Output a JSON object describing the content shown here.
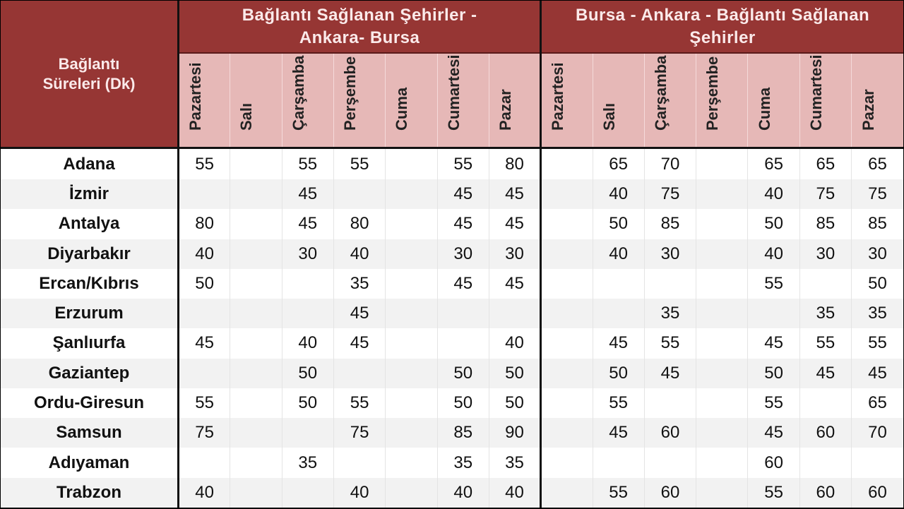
{
  "header": {
    "corner_line1": "Bağlantı",
    "corner_line2": "Süreleri (Dk)",
    "group1": {
      "bold": "Bağlantı Sağlanan Şehirler -",
      "normal": "Ankara- Bursa"
    },
    "group2": {
      "normal": "Bursa - Ankara - ",
      "bold": "Bağlantı Sağlanan Şehirler"
    },
    "days": [
      "Pazartesi",
      "Salı",
      "Çarşamba",
      "Perşembe",
      "Cuma",
      "Cumartesi",
      "Pazar"
    ]
  },
  "colors": {
    "header_dark": "#963634",
    "header_light": "#e6b8b7",
    "stripe": "#f2f2f2"
  },
  "rows": [
    {
      "city": "Adana",
      "values": [
        "55",
        "",
        "55",
        "55",
        "",
        "55",
        "80",
        "",
        "65",
        "70",
        "",
        "65",
        "65",
        "65"
      ]
    },
    {
      "city": "İzmir",
      "values": [
        "",
        "",
        "45",
        "",
        "",
        "45",
        "45",
        "",
        "40",
        "75",
        "",
        "40",
        "75",
        "75"
      ]
    },
    {
      "city": "Antalya",
      "values": [
        "80",
        "",
        "45",
        "80",
        "",
        "45",
        "45",
        "",
        "50",
        "85",
        "",
        "50",
        "85",
        "85"
      ]
    },
    {
      "city": "Diyarbakır",
      "values": [
        "40",
        "",
        "30",
        "40",
        "",
        "30",
        "30",
        "",
        "40",
        "30",
        "",
        "40",
        "30",
        "30"
      ]
    },
    {
      "city": "Ercan/Kıbrıs",
      "values": [
        "50",
        "",
        "",
        "35",
        "",
        "45",
        "45",
        "",
        "",
        "",
        "",
        "55",
        "",
        "50"
      ]
    },
    {
      "city": "Erzurum",
      "values": [
        "",
        "",
        "",
        "45",
        "",
        "",
        "",
        "",
        "",
        "35",
        "",
        "",
        "35",
        "35"
      ]
    },
    {
      "city": "Şanlıurfa",
      "values": [
        "45",
        "",
        "40",
        "45",
        "",
        "",
        "40",
        "",
        "45",
        "55",
        "",
        "45",
        "55",
        "55"
      ]
    },
    {
      "city": "Gaziantep",
      "values": [
        "",
        "",
        "50",
        "",
        "",
        "50",
        "50",
        "",
        "50",
        "45",
        "",
        "50",
        "45",
        "45"
      ]
    },
    {
      "city": "Ordu-Giresun",
      "values": [
        "55",
        "",
        "50",
        "55",
        "",
        "50",
        "50",
        "",
        "55",
        "",
        "",
        "55",
        "",
        "65"
      ]
    },
    {
      "city": "Samsun",
      "values": [
        "75",
        "",
        "",
        "75",
        "",
        "85",
        "90",
        "",
        "45",
        "60",
        "",
        "45",
        "60",
        "70"
      ]
    },
    {
      "city": "Adıyaman",
      "values": [
        "",
        "",
        "35",
        "",
        "",
        "35",
        "35",
        "",
        "",
        "",
        "",
        "60",
        "",
        ""
      ]
    },
    {
      "city": "Trabzon",
      "values": [
        "40",
        "",
        "",
        "40",
        "",
        "40",
        "40",
        "",
        "55",
        "60",
        "",
        "55",
        "60",
        "60"
      ]
    }
  ]
}
